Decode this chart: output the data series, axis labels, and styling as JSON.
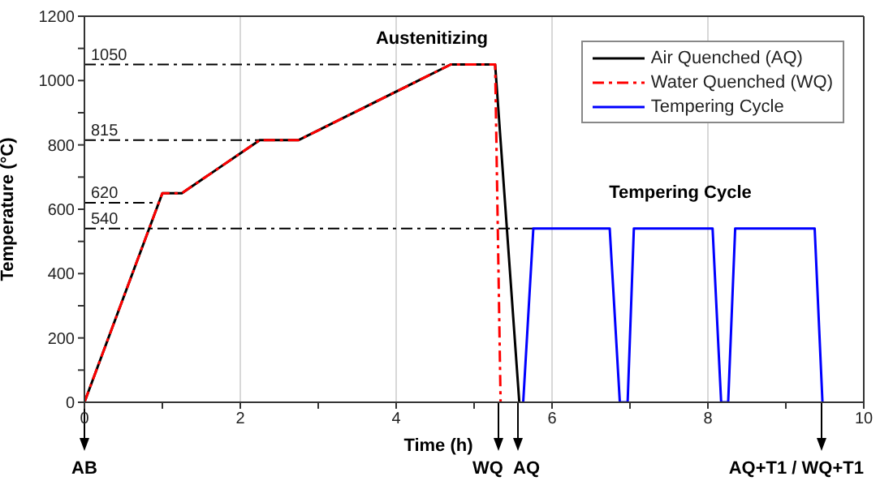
{
  "chart_data": {
    "type": "line",
    "xlabel": "Time (h)",
    "ylabel": "Temperature (°C)",
    "xlim": [
      0,
      10
    ],
    "ylim": [
      0,
      1200
    ],
    "xticks": [
      0,
      {
        "value": 1,
        "label": null
      },
      2,
      {
        "value": 3,
        "label": null
      },
      4,
      {
        "value": 5,
        "label": null
      },
      6,
      {
        "value": 7,
        "label": null
      },
      8,
      {
        "value": 9,
        "label": null
      },
      10
    ],
    "yticks": [
      0,
      {
        "value": 100,
        "label": null
      },
      200,
      {
        "value": 300,
        "label": null
      },
      400,
      {
        "value": 500,
        "label": null
      },
      600,
      {
        "value": 700,
        "label": null
      },
      800,
      {
        "value": 900,
        "label": null
      },
      1000,
      {
        "value": 1100,
        "label": null
      },
      1200
    ],
    "grid": "x",
    "legend": "top right",
    "series": [
      {
        "name": "Air Quenched (AQ)",
        "color": "#000000",
        "line_style": "solid",
        "x": [
          0,
          1.0,
          1.25,
          2.25,
          2.75,
          4.7,
          5.27,
          5.58
        ],
        "values": [
          0,
          650,
          650,
          815,
          815,
          1050,
          1050,
          0
        ]
      },
      {
        "name": "Water Quenched (WQ)",
        "color": "#ff0000",
        "line_style": "dashed",
        "x": [
          0,
          1.0,
          1.25,
          2.25,
          2.75,
          4.7,
          5.27,
          5.34
        ],
        "values": [
          0,
          650,
          650,
          815,
          815,
          1050,
          1050,
          0
        ]
      },
      {
        "name": "Tempering Cycle",
        "color": "#0000ff",
        "line_style": "solid",
        "x": [
          5.63,
          5.76,
          6.74,
          6.87,
          6.97,
          7.05,
          8.06,
          8.17,
          8.26,
          8.35,
          9.37,
          9.47
        ],
        "values": [
          0,
          540,
          540,
          0,
          0,
          540,
          540,
          0,
          0,
          540,
          540,
          0
        ]
      }
    ],
    "ref_lines": [
      {
        "axis": "y",
        "value": 1050,
        "label": "1050",
        "color": "#000000",
        "line_style": "dashed"
      },
      {
        "axis": "y",
        "value": 815,
        "label": "815",
        "color": "#000000",
        "line_style": "dashed"
      },
      {
        "axis": "y",
        "value": 620,
        "label": "620",
        "color": "#000000",
        "line_style": "dashed"
      },
      {
        "axis": "y",
        "value": 540,
        "label": "540",
        "color": "#000000",
        "line_style": "dashed"
      }
    ],
    "annotations": [
      "Austenitizing",
      "Tempering Cycle",
      "AB",
      "WQ",
      "AQ",
      "AQ+T1 / WQ+T1"
    ]
  }
}
